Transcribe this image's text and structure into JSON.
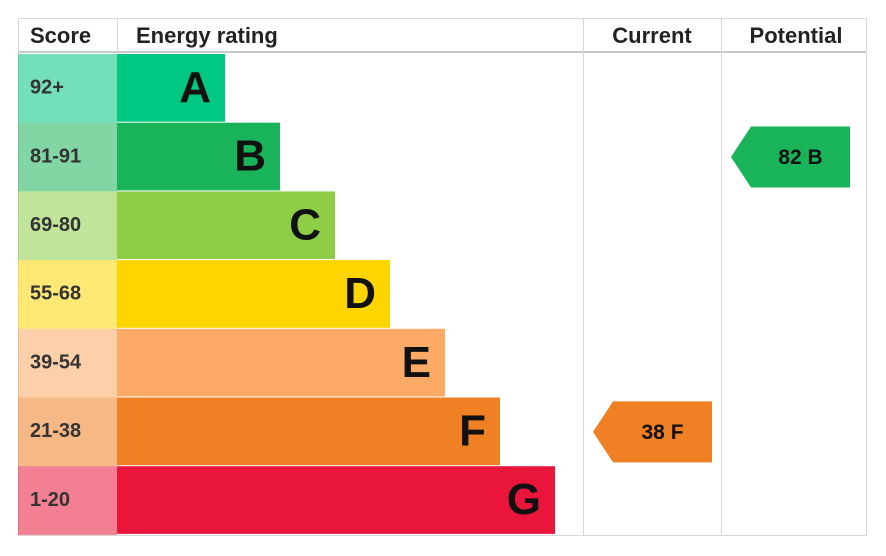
{
  "header": {
    "score": "Score",
    "energy_rating": "Energy rating",
    "current": "Current",
    "potential": "Potential"
  },
  "bands": [
    {
      "score": "92+",
      "letter": "A",
      "color": "#00c781"
    },
    {
      "score": "81-91",
      "letter": "B",
      "color": "#19b459"
    },
    {
      "score": "69-80",
      "letter": "C",
      "color": "#8dce46"
    },
    {
      "score": "55-68",
      "letter": "D",
      "color": "#ffd500"
    },
    {
      "score": "39-54",
      "letter": "E",
      "color": "#fcaa65"
    },
    {
      "score": "21-38",
      "letter": "F",
      "color": "#ef8023"
    },
    {
      "score": "1-20",
      "letter": "G",
      "color": "#e9153b"
    }
  ],
  "current": {
    "score": 38,
    "rating": "F"
  },
  "potential": {
    "score": 82,
    "rating": "B"
  }
}
